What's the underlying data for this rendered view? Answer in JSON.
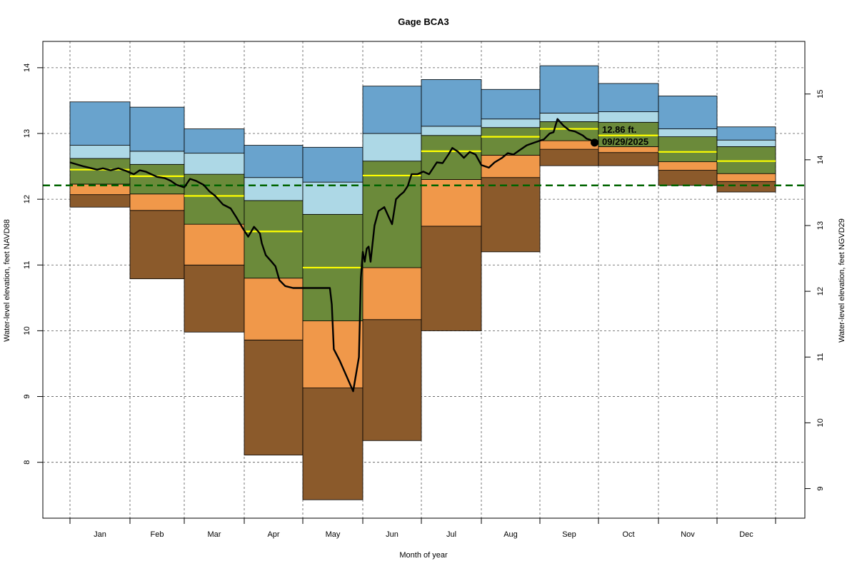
{
  "chart_data": {
    "type": "area",
    "title": "Gage BCA3",
    "xlabel": "Month of year",
    "ylabel_left": "Water-level elevation, feet NAVD88",
    "ylabel_right": "Water-level elevation, feet NGVD29",
    "months": [
      "Jan",
      "Feb",
      "Mar",
      "Apr",
      "May",
      "Jun",
      "Jul",
      "Aug",
      "Sep",
      "Oct",
      "Nov",
      "Dec"
    ],
    "month_days": [
      31,
      28,
      31,
      30,
      31,
      30,
      31,
      31,
      30,
      31,
      30,
      31
    ],
    "y_left_range": [
      7.15,
      14.4
    ],
    "y_left_ticks": [
      8,
      9,
      10,
      11,
      12,
      13,
      14
    ],
    "y_right_offset": 1.4,
    "y_right_ticks": [
      9,
      10,
      11,
      12,
      13,
      14,
      15
    ],
    "reference_line": {
      "value": 12.21,
      "color": "#006400"
    },
    "band_colors": [
      "#8B5A2B",
      "#F0984A",
      "#6B8A3A",
      "#ADD8E6",
      "#69A3CD"
    ],
    "median_color": "#FFFF00",
    "percentile_bands": [
      {
        "month": "Jan",
        "min": 11.88,
        "p10": 12.07,
        "p25": 12.23,
        "p75": 12.62,
        "p90": 12.82,
        "max": 13.48,
        "median": 12.45
      },
      {
        "month": "Feb",
        "min": 10.79,
        "p10": 11.83,
        "p25": 12.08,
        "p75": 12.53,
        "p90": 12.73,
        "max": 13.4,
        "median": 12.35
      },
      {
        "month": "Mar",
        "min": 9.98,
        "p10": 11.0,
        "p25": 11.62,
        "p75": 12.38,
        "p90": 12.7,
        "max": 13.07,
        "median": 12.05
      },
      {
        "month": "Apr",
        "min": 8.11,
        "p10": 9.86,
        "p25": 10.8,
        "p75": 11.98,
        "p90": 12.33,
        "max": 12.82,
        "median": 11.51
      },
      {
        "month": "May",
        "min": 7.43,
        "p10": 9.13,
        "p25": 10.15,
        "p75": 11.77,
        "p90": 12.26,
        "max": 12.79,
        "median": 10.96
      },
      {
        "month": "Jun",
        "min": 8.33,
        "p10": 10.17,
        "p25": 10.96,
        "p75": 12.58,
        "p90": 13.0,
        "max": 13.72,
        "median": 12.36
      },
      {
        "month": "Jul",
        "min": 10.0,
        "p10": 11.59,
        "p25": 12.3,
        "p75": 12.97,
        "p90": 13.11,
        "max": 13.82,
        "median": 12.73
      },
      {
        "month": "Aug",
        "min": 11.2,
        "p10": 12.33,
        "p25": 12.67,
        "p75": 13.09,
        "p90": 13.22,
        "max": 13.67,
        "median": 12.95
      },
      {
        "month": "Sep",
        "min": 12.51,
        "p10": 12.76,
        "p25": 12.89,
        "p75": 13.18,
        "p90": 13.31,
        "max": 14.03,
        "median": 13.07
      },
      {
        "month": "Oct",
        "min": 12.51,
        "p10": 12.71,
        "p25": 12.8,
        "p75": 13.17,
        "p90": 13.33,
        "max": 13.76,
        "median": 12.97
      },
      {
        "month": "Nov",
        "min": 12.21,
        "p10": 12.44,
        "p25": 12.57,
        "p75": 12.95,
        "p90": 13.07,
        "max": 13.57,
        "median": 12.72
      },
      {
        "month": "Dec",
        "min": 12.11,
        "p10": 12.27,
        "p25": 12.39,
        "p75": 12.8,
        "p90": 12.9,
        "max": 13.1,
        "median": 12.58
      }
    ],
    "current_year": {
      "color": "#000000",
      "day_of_year": [
        1,
        8,
        15,
        18,
        22,
        26,
        30,
        34,
        37,
        40,
        43,
        46,
        50,
        53,
        56,
        60,
        63,
        66,
        70,
        73,
        76,
        80,
        84,
        87,
        90,
        93,
        96,
        99,
        100,
        102,
        105,
        107,
        109,
        112,
        116,
        120,
        126,
        130,
        133,
        135,
        136,
        137,
        140,
        143,
        147,
        150,
        151,
        152,
        153,
        154,
        155,
        156,
        158,
        160,
        163,
        165,
        167,
        169,
        171,
        173,
        175,
        177,
        180,
        183,
        186,
        190,
        193,
        196,
        198,
        201,
        204,
        207,
        210,
        213,
        217,
        220,
        224,
        227,
        230,
        233,
        237,
        240,
        243,
        246,
        249,
        251,
        253,
        256,
        259,
        262,
        266,
        268,
        270,
        272
      ],
      "values": [
        12.56,
        12.5,
        12.45,
        12.47,
        12.44,
        12.47,
        12.43,
        12.38,
        12.44,
        12.42,
        12.38,
        12.34,
        12.32,
        12.28,
        12.22,
        12.18,
        12.31,
        12.28,
        12.22,
        12.12,
        12.05,
        11.92,
        11.86,
        11.72,
        11.57,
        11.43,
        11.58,
        11.48,
        11.33,
        11.15,
        11.05,
        10.98,
        10.77,
        10.68,
        10.65,
        10.65,
        10.65,
        10.65,
        10.65,
        10.65,
        10.4,
        9.72,
        9.55,
        9.35,
        9.08,
        9.6,
        10.8,
        11.2,
        11.05,
        11.25,
        11.28,
        11.05,
        11.6,
        11.82,
        11.88,
        11.75,
        11.62,
        12.0,
        12.06,
        12.11,
        12.2,
        12.38,
        12.38,
        12.42,
        12.38,
        12.56,
        12.55,
        12.68,
        12.78,
        12.72,
        12.63,
        12.72,
        12.68,
        12.52,
        12.48,
        12.56,
        12.63,
        12.7,
        12.68,
        12.74,
        12.82,
        12.85,
        12.88,
        12.91,
        13.0,
        13.02,
        13.22,
        13.12,
        13.05,
        13.03,
        12.97,
        12.92,
        12.9,
        12.86
      ]
    },
    "callout": {
      "value_label": "12.86 ft.",
      "date_label": "09/29/2025"
    }
  }
}
